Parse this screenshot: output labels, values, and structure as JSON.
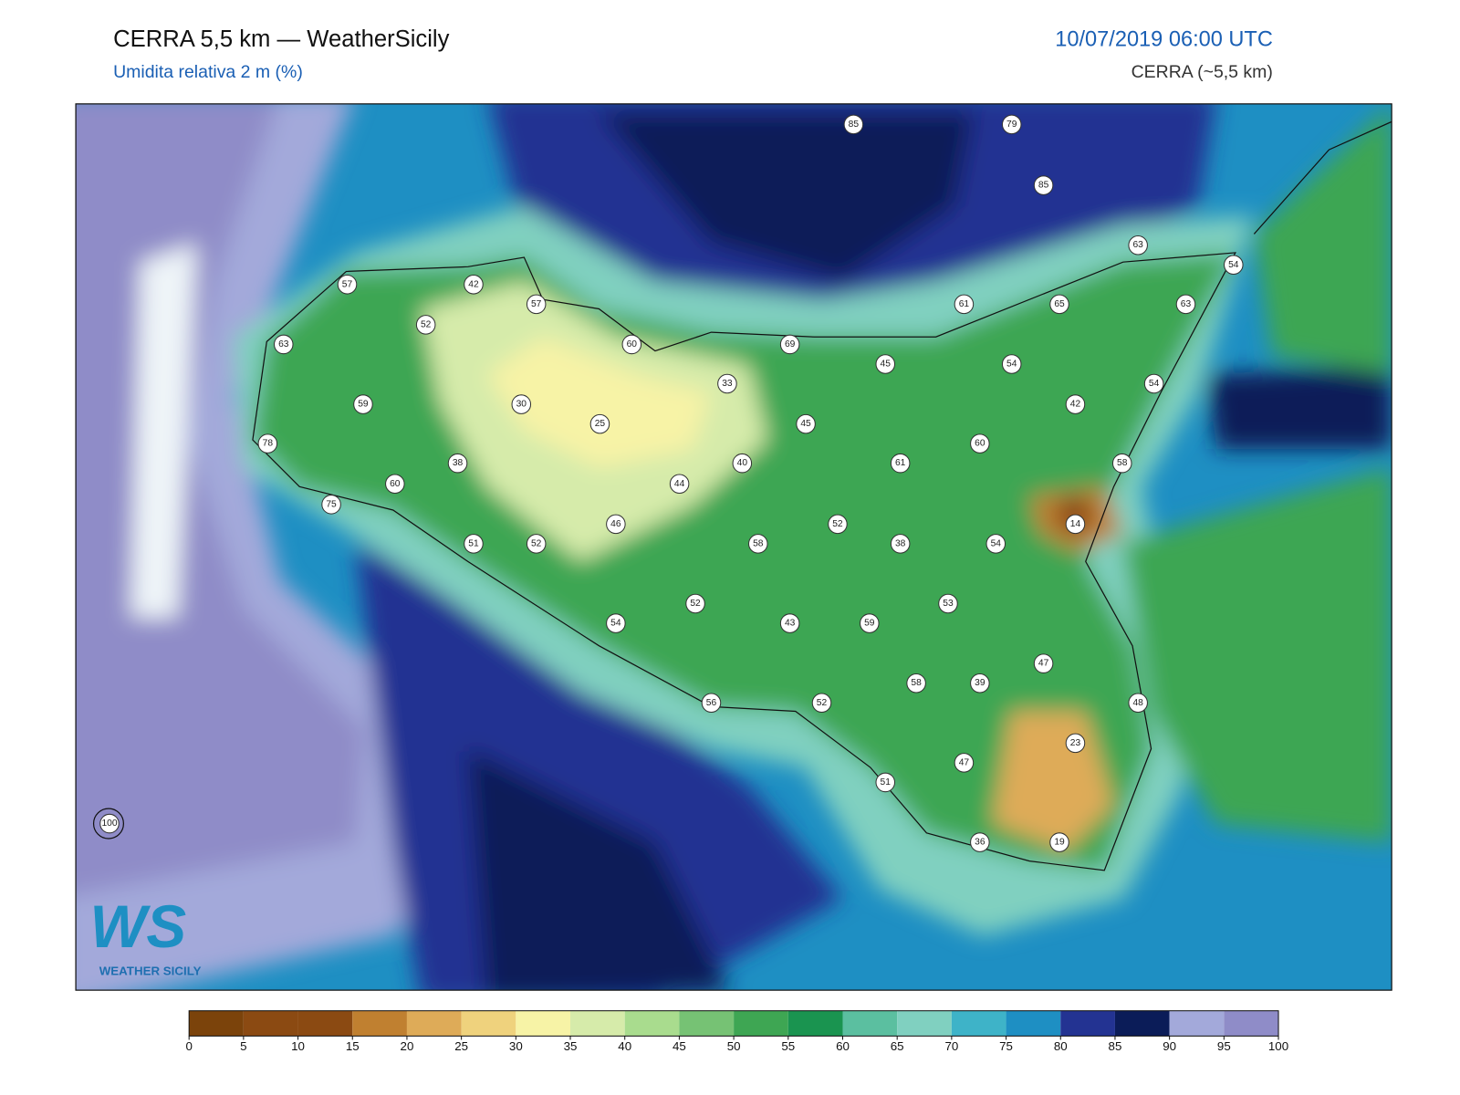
{
  "header": {
    "title": "CERRA 5,5 km — WeatherSicily",
    "subtitle": "Umidita relativa 2 m (%)",
    "datetime": "10/07/2019 06:00 UTC",
    "source": "CERRA (~5,5 km)"
  },
  "map": {
    "stations": [
      85,
      79,
      85,
      63,
      54,
      57,
      42,
      57,
      61,
      65,
      63,
      52,
      63,
      60,
      69,
      45,
      54,
      33,
      54,
      59,
      30,
      42,
      25,
      45,
      78,
      60,
      38,
      40,
      61,
      58,
      60,
      44,
      75,
      46,
      52,
      14,
      51,
      52,
      58,
      38,
      54,
      53,
      52,
      54,
      43,
      59,
      47,
      58,
      39,
      56,
      52,
      48,
      23,
      47,
      51,
      36,
      19,
      100
    ]
  },
  "colorbar": {
    "ticks": [
      0,
      5,
      10,
      15,
      20,
      25,
      30,
      35,
      40,
      45,
      50,
      55,
      60,
      65,
      70,
      75,
      80,
      85,
      90,
      95,
      100
    ],
    "colors": [
      "#7b430b",
      "#8b4a12",
      "#8b4a12",
      "#c08030",
      "#deab58",
      "#efd27d",
      "#f7f3a6",
      "#d6ebaa",
      "#a9dc8e",
      "#76c274",
      "#3ea653",
      "#1a9450",
      "#5bbfa0",
      "#80d0c0",
      "#3eb3c8",
      "#1e8fc3",
      "#233392",
      "#0b1c58",
      "#a3a9da",
      "#8f8cc8"
    ]
  },
  "logo": {
    "mark": "WS",
    "text": "WEATHER SICILY"
  }
}
